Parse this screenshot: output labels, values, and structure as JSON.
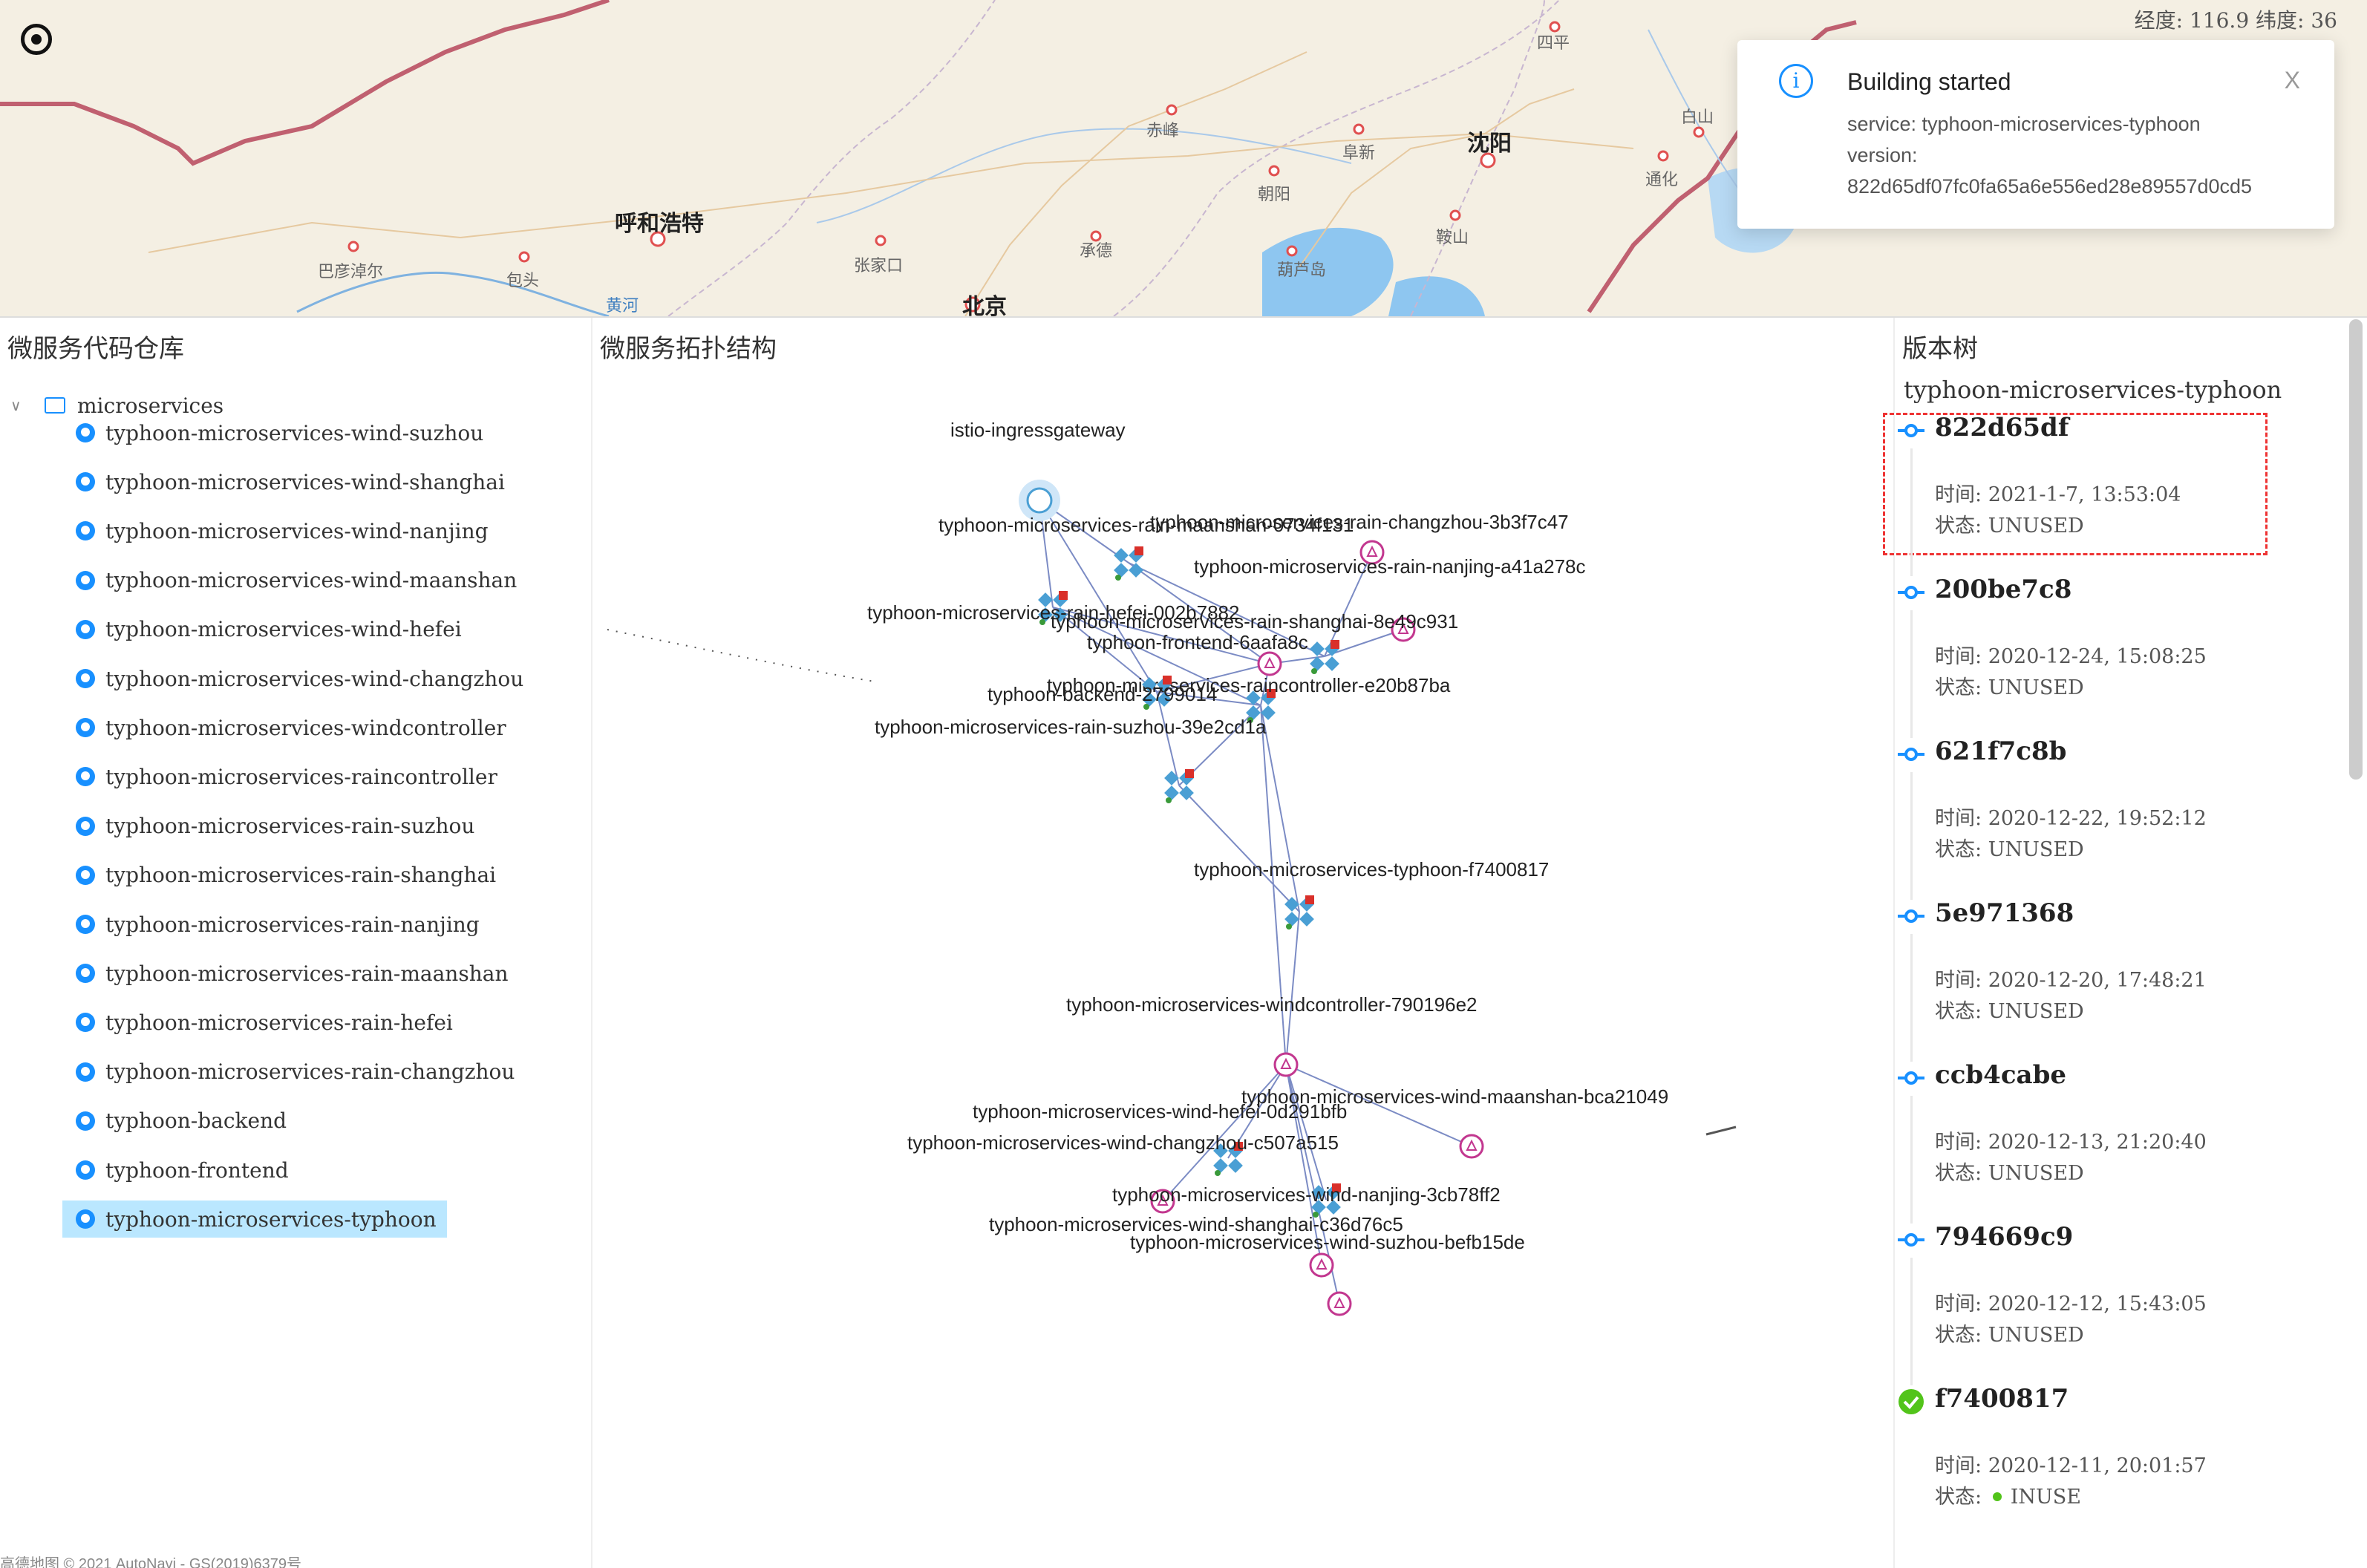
{
  "map": {
    "coords": "经度: 116.9 纬度: 36",
    "cities": [
      "呼和浩特",
      "北京",
      "沈阳",
      "巴彦淖尔",
      "包头",
      "张家口",
      "承德",
      "赤峰",
      "朝阳",
      "阜新",
      "葫芦岛",
      "鞍山",
      "通化",
      "白山",
      "四平",
      "黄河"
    ],
    "footer": "高德地图 © 2021 AutoNavi - GS(2019)6379号"
  },
  "toast": {
    "title": "Building started",
    "service_line": "service: typhoon-microservices-typhoon",
    "version_label": "version:",
    "version_value": "822d65df07fc0fa65a6e556ed28e89557d0cd5",
    "close": "X"
  },
  "left_panel": {
    "title": "微服务代码仓库",
    "root": "microservices",
    "repos": [
      "typhoon-microservices-wind-suzhou",
      "typhoon-microservices-wind-shanghai",
      "typhoon-microservices-wind-nanjing",
      "typhoon-microservices-wind-maanshan",
      "typhoon-microservices-wind-hefei",
      "typhoon-microservices-wind-changzhou",
      "typhoon-microservices-windcontroller",
      "typhoon-microservices-raincontroller",
      "typhoon-microservices-rain-suzhou",
      "typhoon-microservices-rain-shanghai",
      "typhoon-microservices-rain-nanjing",
      "typhoon-microservices-rain-maanshan",
      "typhoon-microservices-rain-hefei",
      "typhoon-microservices-rain-changzhou",
      "typhoon-backend",
      "typhoon-frontend",
      "typhoon-microservices-typhoon"
    ],
    "selected_index": 16
  },
  "middle_panel": {
    "title": "微服务拓扑结构",
    "nodes": [
      "istio-ingressgateway",
      "typhoon-microservices-rain-maanshan-0734f131",
      "typhoon-microservices-rain-changzhou-3b3f7c47",
      "typhoon-microservices-rain-nanjing-a41a278c",
      "typhoon-microservices-rain-hefei-002b7882",
      "typhoon-microservices-rain-shanghai-8e49c931",
      "typhoon-frontend-6aafa8c",
      "typhoon-microservices-raincontroller-e20b87ba",
      "typhoon-backend-2799014",
      "typhoon-microservices-rain-suzhou-39e2cd1a",
      "typhoon-microservices-typhoon-f7400817",
      "typhoon-microservices-windcontroller-790196e2",
      "typhoon-microservices-wind-maanshan-bca21049",
      "typhoon-microservices-wind-hefei-0d291bfb",
      "typhoon-microservices-wind-changzhou-c507a515",
      "typhoon-microservices-wind-nanjing-3cb78ff2",
      "typhoon-microservices-wind-shanghai-c36d76c5",
      "typhoon-microservices-wind-suzhou-befb15de"
    ]
  },
  "right_panel": {
    "title": "版本树",
    "repo": "typhoon-microservices-typhoon",
    "time_prefix": "时间: ",
    "status_prefix": "状态: ",
    "versions": [
      {
        "hash": "822d65df",
        "time": "2021-1-7, 13:53:04",
        "status": "UNUSED"
      },
      {
        "hash": "200be7c8",
        "time": "2020-12-24, 15:08:25",
        "status": "UNUSED"
      },
      {
        "hash": "621f7c8b",
        "time": "2020-12-22, 19:52:12",
        "status": "UNUSED"
      },
      {
        "hash": "5e971368",
        "time": "2020-12-20, 17:48:21",
        "status": "UNUSED"
      },
      {
        "hash": "ccb4cabe",
        "time": "2020-12-13, 21:20:40",
        "status": "UNUSED"
      },
      {
        "hash": "794669c9",
        "time": "2020-12-12, 15:43:05",
        "status": "UNUSED"
      },
      {
        "hash": "f7400817",
        "time": "2020-12-11, 20:01:57",
        "status": "INUSE"
      }
    ]
  },
  "colors": {
    "accent": "#1890ff",
    "selected_bg": "#bae7ff",
    "inuse": "#52c41a",
    "edge": "#7b8bc4",
    "node_blue": "#4a9fd4",
    "node_pink": "#c2378f",
    "node_red": "#d9302a"
  }
}
